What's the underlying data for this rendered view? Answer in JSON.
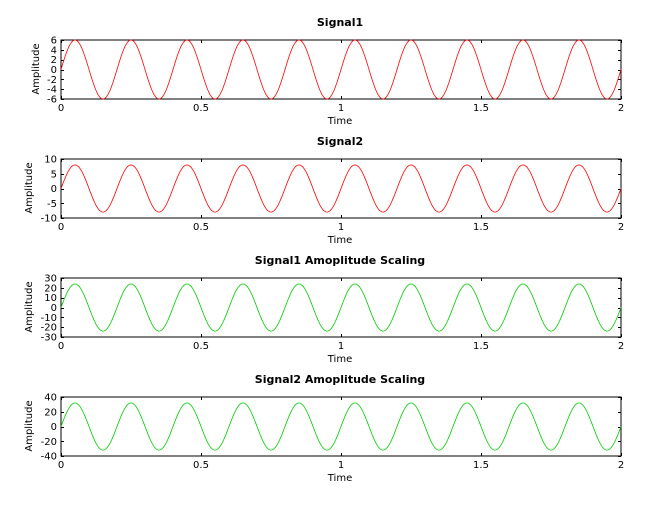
{
  "chart_data": [
    {
      "type": "line",
      "title": "Signal1",
      "xlabel": "Time",
      "ylabel": "Amplitude",
      "xlim": [
        0,
        2
      ],
      "ylim": [
        -6,
        6
      ],
      "xticks": [
        0,
        0.5,
        1,
        1.5,
        2
      ],
      "xtick_labels": [
        "0",
        "0.5",
        "1",
        "1.5",
        "2"
      ],
      "yticks": [
        6,
        4,
        2,
        0,
        -2,
        -4,
        -6
      ],
      "ytick_labels": [
        "6",
        "4",
        "2",
        "0",
        "-2",
        "-4",
        "-6"
      ],
      "grid": false,
      "series": [
        {
          "amplitude": 6,
          "frequency_hz": 5,
          "phase": 0,
          "color": "#ff0000"
        }
      ]
    },
    {
      "type": "line",
      "title": "Signal2",
      "xlabel": "Time",
      "ylabel": "Amplitude",
      "xlim": [
        0,
        2
      ],
      "ylim": [
        -10,
        10
      ],
      "xticks": [
        0,
        0.5,
        1,
        1.5,
        2
      ],
      "xtick_labels": [
        "0",
        "0.5",
        "1",
        "1.5",
        "2"
      ],
      "yticks": [
        10,
        5,
        0,
        -5,
        -10
      ],
      "ytick_labels": [
        "10",
        "5",
        "0",
        "-5",
        "-10"
      ],
      "grid": false,
      "series": [
        {
          "amplitude": 8,
          "frequency_hz": 5,
          "phase": 0,
          "color": "#ff0000"
        }
      ]
    },
    {
      "type": "line",
      "title": "Signal1 Amoplitude Scaling",
      "xlabel": "Time",
      "ylabel": "Amplitude",
      "xlim": [
        0,
        2
      ],
      "ylim": [
        -30,
        30
      ],
      "xticks": [
        0,
        0.5,
        1,
        1.5,
        2
      ],
      "xtick_labels": [
        "0",
        "0.5",
        "1",
        "1.5",
        "2"
      ],
      "yticks": [
        30,
        20,
        10,
        0,
        -10,
        -20,
        -30
      ],
      "ytick_labels": [
        "30",
        "20",
        "10",
        "0",
        "-10",
        "-20",
        "-30"
      ],
      "grid": false,
      "series": [
        {
          "amplitude": 24,
          "frequency_hz": 5,
          "phase": 0,
          "color": "#00cc00"
        }
      ]
    },
    {
      "type": "line",
      "title": "Signal2 Amoplitude Scaling",
      "xlabel": "Time",
      "ylabel": "Amplitude",
      "xlim": [
        0,
        2
      ],
      "ylim": [
        -40,
        40
      ],
      "xticks": [
        0,
        0.5,
        1,
        1.5,
        2
      ],
      "xtick_labels": [
        "0",
        "0.5",
        "1",
        "1.5",
        "2"
      ],
      "yticks": [
        40,
        20,
        0,
        -20,
        -40
      ],
      "ytick_labels": [
        "40",
        "20",
        "0",
        "-20",
        "-40"
      ],
      "grid": false,
      "series": [
        {
          "amplitude": 32,
          "frequency_hz": 5,
          "phase": 0,
          "color": "#00cc00"
        }
      ]
    }
  ]
}
